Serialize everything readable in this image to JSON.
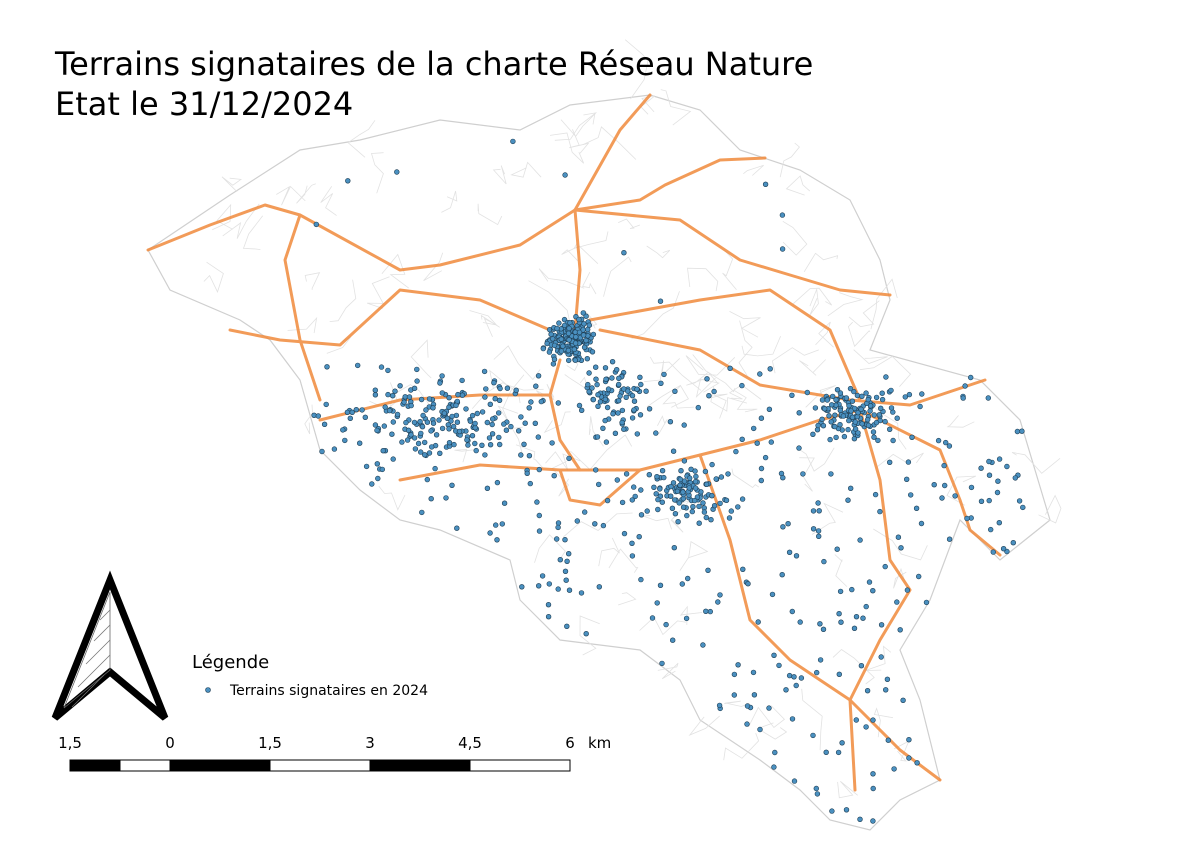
{
  "title": {
    "line1": "Terrains signataires de la charte Réseau Nature",
    "line2": "Etat le 31/12/2024"
  },
  "legend": {
    "title": "Légende",
    "items": [
      "Terrains signataires en 2024"
    ]
  },
  "scale_bar": {
    "labels": [
      "1,5",
      "0",
      "1,5",
      "3",
      "4,5",
      "6"
    ],
    "unit": "km"
  }
}
